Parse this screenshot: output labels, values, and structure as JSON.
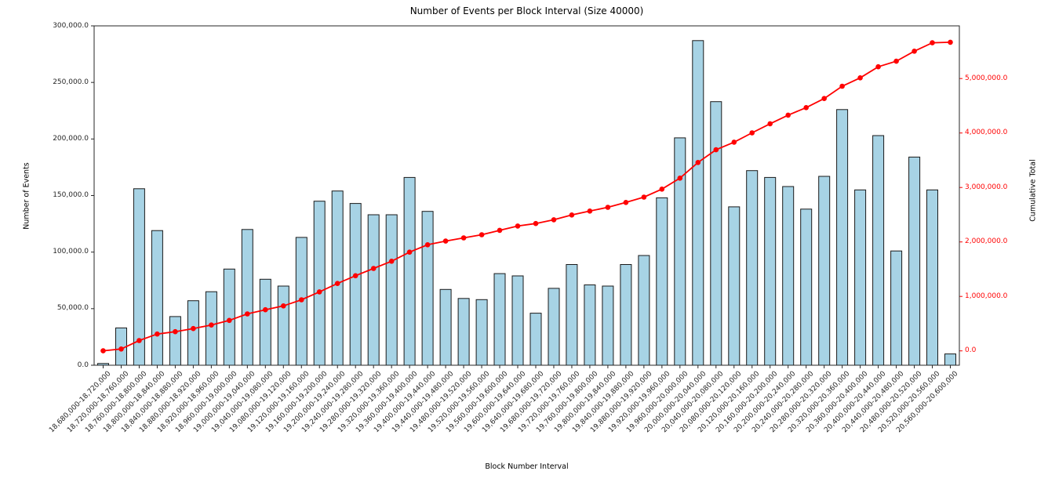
{
  "chart_data": {
    "type": "bar",
    "title": "Number of Events per Block Interval (Size 40000)",
    "xlabel": "Block Number Interval",
    "ylabel_left": "Number of Events",
    "ylabel_right": "Cumulative Total",
    "legend_position": "none",
    "grid": false,
    "ylim_left": [
      0,
      300000
    ],
    "y_left_tick_labels": [
      "0.0",
      "50,000.0",
      "100,000.0",
      "150,000.0",
      "200,000.0",
      "250,000.0",
      "300,000.0"
    ],
    "y_right_tick_labels": [
      "0.0",
      "1,000,000.0",
      "2,000,000.0",
      "3,000,000.0",
      "4,000,000.0",
      "5,000,000.0"
    ],
    "categories": [
      "18,680,000-18,720,000",
      "18,720,000-18,760,000",
      "18,760,000-18,800,000",
      "18,800,000-18,840,000",
      "18,840,000-18,880,000",
      "18,880,000-18,920,000",
      "18,920,000-18,960,000",
      "18,960,000-19,000,000",
      "19,000,000-19,040,000",
      "19,040,000-19,080,000",
      "19,080,000-19,120,000",
      "19,120,000-19,160,000",
      "19,160,000-19,200,000",
      "19,200,000-19,240,000",
      "19,240,000-19,280,000",
      "19,280,000-19,320,000",
      "19,320,000-19,360,000",
      "19,360,000-19,400,000",
      "19,400,000-19,440,000",
      "19,440,000-19,480,000",
      "19,480,000-19,520,000",
      "19,520,000-19,560,000",
      "19,560,000-19,600,000",
      "19,600,000-19,640,000",
      "19,640,000-19,680,000",
      "19,680,000-19,720,000",
      "19,720,000-19,760,000",
      "19,760,000-19,800,000",
      "19,800,000-19,840,000",
      "19,840,000-19,880,000",
      "19,880,000-19,920,000",
      "19,920,000-19,960,000",
      "19,960,000-20,000,000",
      "20,000,000-20,040,000",
      "20,040,000-20,080,000",
      "20,080,000-20,120,000",
      "20,120,000-20,160,000",
      "20,160,000-20,200,000",
      "20,200,000-20,240,000",
      "20,240,000-20,280,000",
      "20,280,000-20,320,000",
      "20,320,000-20,360,000",
      "20,360,000-20,400,000",
      "20,400,000-20,440,000",
      "20,440,000-20,480,000",
      "20,480,000-20,520,000",
      "20,520,000-20,560,000",
      "20,560,000-20,600,000"
    ],
    "series": [
      {
        "name": "Number of Events",
        "type": "bar",
        "values": [
          1500,
          33000,
          156000,
          119000,
          43000,
          57000,
          65000,
          85000,
          120000,
          76000,
          70000,
          113000,
          145000,
          154000,
          143000,
          133000,
          133000,
          166000,
          136000,
          67000,
          59000,
          58000,
          81000,
          79000,
          46000,
          68000,
          89000,
          71000,
          70000,
          89000,
          97000,
          148000,
          201000,
          287000,
          233000,
          140000,
          172000,
          166000,
          158000,
          138000,
          167000,
          226000,
          155000,
          203000,
          101000,
          184000,
          155000,
          10000
        ]
      },
      {
        "name": "Cumulative Total",
        "type": "line",
        "values": [
          1500,
          34500,
          190500,
          309500,
          352500,
          409500,
          474500,
          559500,
          679500,
          755500,
          825500,
          938500,
          1083500,
          1237500,
          1380500,
          1513500,
          1646500,
          1812500,
          1948500,
          2015500,
          2074500,
          2132500,
          2213500,
          2292500,
          2338500,
          2406500,
          2495500,
          2566500,
          2636500,
          2725500,
          2822500,
          2970500,
          3171500,
          3458500,
          3691500,
          3831500,
          4003500,
          4169500,
          4327500,
          4465500,
          4632500,
          4858500,
          5013500,
          5216500,
          5317500,
          5501500,
          5656500,
          5666500
        ]
      }
    ],
    "colors": {
      "bar_fill": "#A7D3E5",
      "bar_edge": "#1A1A1A",
      "line": "#FF0000",
      "right_axis": "#FF0000",
      "spine": "#262626",
      "tick_text": "#262626"
    }
  }
}
